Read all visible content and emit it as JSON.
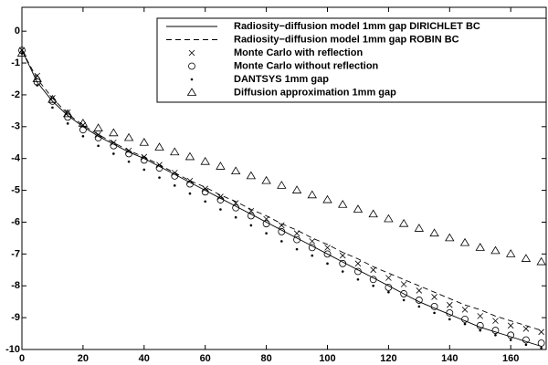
{
  "chart_data": {
    "type": "line",
    "x": [
      0,
      5,
      10,
      15,
      20,
      25,
      30,
      35,
      40,
      45,
      50,
      55,
      60,
      65,
      70,
      75,
      80,
      85,
      90,
      95,
      100,
      105,
      110,
      115,
      120,
      125,
      130,
      135,
      140,
      145,
      150,
      155,
      160,
      165,
      170
    ],
    "series": [
      {
        "name": "Radiosity−diffusion model 1mm gap DIRICHLET BC",
        "color": "#000000",
        "style": "solid",
        "values": [
          -0.6,
          -1.6,
          -2.2,
          -2.65,
          -3.0,
          -3.3,
          -3.55,
          -3.8,
          -4.0,
          -4.25,
          -4.5,
          -4.75,
          -5.0,
          -5.25,
          -5.5,
          -5.75,
          -6.0,
          -6.25,
          -6.5,
          -6.75,
          -7.0,
          -7.25,
          -7.5,
          -7.75,
          -8.0,
          -8.25,
          -8.5,
          -8.7,
          -8.9,
          -9.1,
          -9.3,
          -9.45,
          -9.6,
          -9.75,
          -9.9
        ]
      },
      {
        "name": "Radiosity−diffusion model 1mm gap ROBIN BC",
        "color": "#000000",
        "style": "dashed",
        "values": [
          -0.6,
          -1.5,
          -2.1,
          -2.6,
          -2.95,
          -3.25,
          -3.5,
          -3.75,
          -3.95,
          -4.2,
          -4.45,
          -4.7,
          -4.9,
          -5.15,
          -5.35,
          -5.6,
          -5.8,
          -6.05,
          -6.25,
          -6.5,
          -6.7,
          -6.95,
          -7.15,
          -7.4,
          -7.6,
          -7.8,
          -8.0,
          -8.2,
          -8.4,
          -8.6,
          -8.75,
          -8.95,
          -9.1,
          -9.25,
          -9.4
        ]
      },
      {
        "name": "Monte Carlo with reflection",
        "color": "#000000",
        "style": "x",
        "values": [
          -0.6,
          -1.4,
          -2.1,
          -2.55,
          -2.95,
          -3.25,
          -3.5,
          -3.75,
          -3.95,
          -4.2,
          -4.45,
          -4.7,
          -4.95,
          -5.2,
          -5.4,
          -5.65,
          -5.9,
          -6.1,
          -6.35,
          -6.6,
          -6.8,
          -7.05,
          -7.3,
          -7.5,
          -7.75,
          -7.95,
          -8.15,
          -8.35,
          -8.6,
          -8.75,
          -8.95,
          -9.1,
          -9.25,
          -9.35,
          -9.45
        ]
      },
      {
        "name": "Monte Carlo without reflection",
        "color": "#000000",
        "style": "circle",
        "values": [
          -0.6,
          -1.6,
          -2.2,
          -2.7,
          -3.1,
          -3.35,
          -3.6,
          -3.85,
          -4.05,
          -4.3,
          -4.55,
          -4.8,
          -5.05,
          -5.3,
          -5.55,
          -5.8,
          -6.05,
          -6.3,
          -6.55,
          -6.8,
          -7.0,
          -7.3,
          -7.55,
          -7.8,
          -8.05,
          -8.25,
          -8.45,
          -8.65,
          -8.85,
          -9.05,
          -9.25,
          -9.4,
          -9.55,
          -9.7,
          -9.8
        ]
      },
      {
        "name": "DANTSYS 1mm gap",
        "color": "#000000",
        "style": "dot",
        "values": [
          -0.7,
          -1.7,
          -2.4,
          -2.9,
          -3.3,
          -3.6,
          -3.85,
          -4.1,
          -4.35,
          -4.6,
          -4.85,
          -5.1,
          -5.35,
          -5.6,
          -5.85,
          -6.1,
          -6.35,
          -6.6,
          -6.85,
          -7.05,
          -7.3,
          -7.55,
          -7.8,
          -8.0,
          -8.2,
          -8.45,
          -8.65,
          -8.85,
          -9.05,
          -9.2,
          -9.4,
          -9.55,
          -9.7,
          -9.85,
          -9.95
        ]
      },
      {
        "name": "Diffusion approximation 1mm gap",
        "color": "#000000",
        "style": "triangle",
        "values": [
          -0.7,
          -1.5,
          -2.15,
          -2.6,
          -2.9,
          -3.05,
          -3.2,
          -3.35,
          -3.5,
          -3.65,
          -3.8,
          -3.95,
          -4.1,
          -4.25,
          -4.4,
          -4.55,
          -4.7,
          -4.85,
          -5.0,
          -5.15,
          -5.3,
          -5.45,
          -5.6,
          -5.75,
          -5.9,
          -6.05,
          -6.2,
          -6.35,
          -6.5,
          -6.65,
          -6.8,
          -6.9,
          -7.0,
          -7.15,
          -7.25
        ]
      }
    ],
    "xlim": [
      0,
      171.6
    ],
    "xticks": [
      0,
      20,
      40,
      60,
      80,
      100,
      120,
      140,
      160
    ],
    "ylim": [
      -10,
      0.75
    ],
    "yticks": [
      -10,
      -9,
      -8,
      -7,
      -6,
      -5,
      -4,
      -3,
      -2,
      -1,
      0
    ],
    "legend": "top-right",
    "grid": false
  }
}
